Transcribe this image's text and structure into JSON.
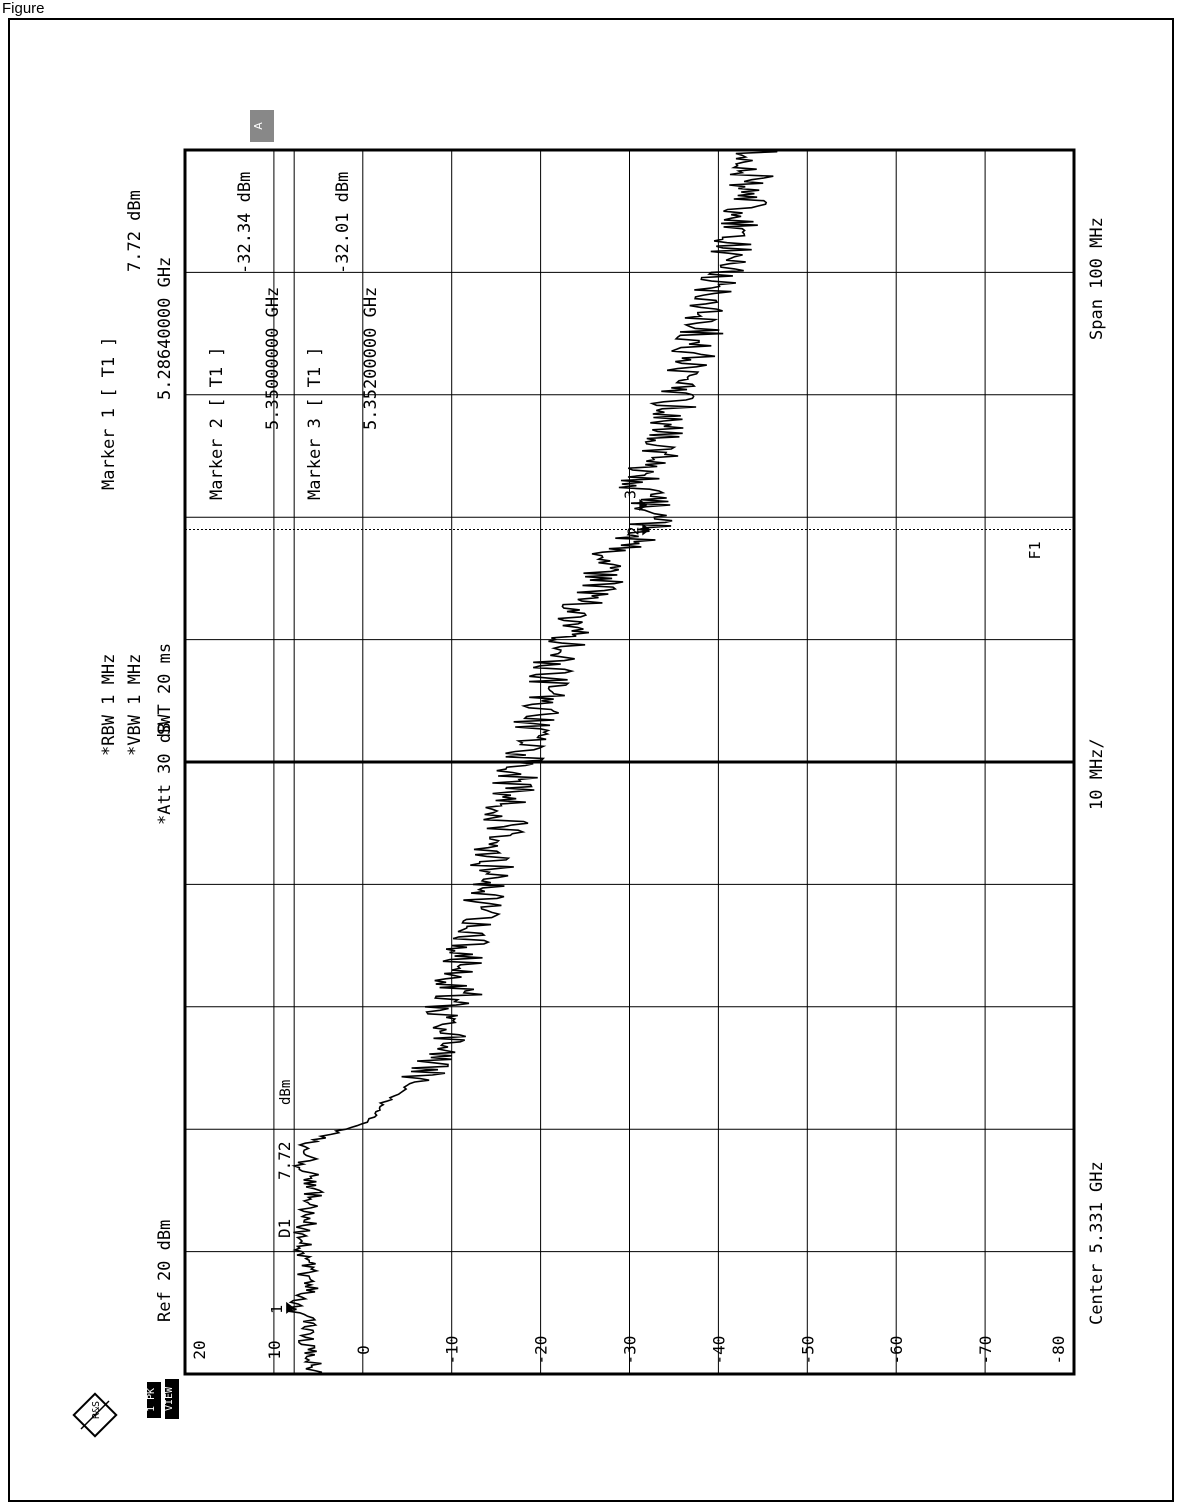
{
  "page_title": "Figure",
  "badges": {
    "trace": "1 PK",
    "view": "VIEW",
    "screen": "A"
  },
  "logo_text": "R&S",
  "settings": {
    "ref": "Ref 20 dBm",
    "att": "*Att 30 dB",
    "rbw": "*RBW 1 MHz",
    "vbw": "*VBW 1 MHz",
    "swt": "SWT 20 ms"
  },
  "markers": [
    {
      "title": "Marker 1 [ T1 ]",
      "level": "7.72 dBm",
      "freq": "5.28640000 GHz"
    },
    {
      "title": "Marker 2 [ T1 ]",
      "level": "-32.34 dBm",
      "freq": "5.35000000 GHz"
    },
    {
      "title": "Marker 3 [ T1 ]",
      "level": "-32.01 dBm",
      "freq": "5.35200000 GHz"
    }
  ],
  "footer": {
    "center": "Center 5.331 GHz",
    "div": "10 MHz/",
    "span": "Span 100 MHz"
  },
  "display_line": {
    "label": "D1",
    "value": "7.72",
    "unit": "dBm"
  },
  "freq_line_label": "F1",
  "marker_tags": [
    "1",
    "2",
    "3"
  ],
  "chart_data": {
    "type": "line",
    "x_unit": "GHz",
    "y_unit": "dBm",
    "xlim": [
      5.281,
      5.381
    ],
    "ylim": [
      -80,
      20
    ],
    "y_ticks": [
      20,
      10,
      0,
      -10,
      -20,
      -30,
      -40,
      -50,
      -60,
      -70,
      -80
    ],
    "y_tick_labels": [
      "20",
      "10",
      "0",
      "-10",
      "-20",
      "-30",
      "-40",
      "-50",
      "-60",
      "-70",
      "-80"
    ],
    "display_line_dbm": 7.72,
    "f1_ghz": 5.35,
    "grid": true,
    "markers": [
      {
        "id": "1",
        "x": 5.2864,
        "y": 7.72
      },
      {
        "id": "2",
        "x": 5.35,
        "y": -32.34
      },
      {
        "id": "3",
        "x": 5.352,
        "y": -32.01
      }
    ],
    "series": [
      {
        "x": [
          5.281,
          5.282,
          5.283,
          5.284,
          5.285,
          5.2864,
          5.288,
          5.29,
          5.292,
          5.294,
          5.296,
          5.298,
          5.3,
          5.301,
          5.3015,
          5.302,
          5.303,
          5.304,
          5.305,
          5.306,
          5.307,
          5.308,
          5.309,
          5.31,
          5.311,
          5.312,
          5.313,
          5.314,
          5.315,
          5.316,
          5.318,
          5.32,
          5.322,
          5.324,
          5.326,
          5.328,
          5.33,
          5.332,
          5.334,
          5.336,
          5.338,
          5.34,
          5.342,
          5.344,
          5.346,
          5.348,
          5.35,
          5.352,
          5.354,
          5.356,
          5.358,
          5.36,
          5.362,
          5.364,
          5.366,
          5.368,
          5.37,
          5.372,
          5.374,
          5.376,
          5.378,
          5.38,
          5.381
        ],
        "y": [
          5,
          5.5,
          6,
          6.5,
          5.5,
          7.72,
          6,
          6.5,
          7,
          6,
          5.5,
          6.5,
          6,
          2,
          0,
          -1.5,
          -2,
          -4,
          -6,
          -8,
          -9,
          -10,
          -8.5,
          -10,
          -9,
          -11,
          -10.5,
          -11.5,
          -11,
          -12,
          -13,
          -13.5,
          -14.5,
          -15,
          -16,
          -16.5,
          -17.5,
          -18,
          -19,
          -20,
          -21,
          -22,
          -24,
          -25,
          -27,
          -28,
          -32.34,
          -32.01,
          -31,
          -33,
          -34,
          -35,
          -36,
          -37,
          -38,
          -39,
          -40,
          -41,
          -42,
          -43,
          -43.5,
          -44,
          -44
        ]
      }
    ]
  }
}
